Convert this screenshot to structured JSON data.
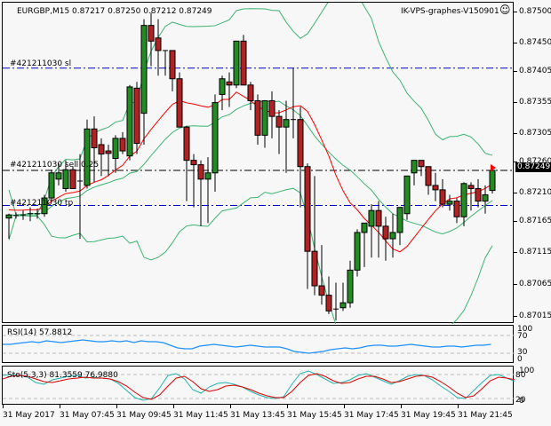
{
  "header": {
    "symbol_info": "EURGBP,M15  0.87217 0.87250 0.87212 0.87249",
    "account_label": "IK-VPS-graphes-V150901",
    "smiley_icon": "☺"
  },
  "price_axis": {
    "labels": [
      "0.87500",
      "0.87450",
      "0.87405",
      "0.87355",
      "0.87305",
      "0.87260",
      "0.87210",
      "0.87165",
      "0.87115",
      "0.87065",
      "0.87015"
    ],
    "current_price": "0.87249"
  },
  "order_lines": {
    "sl_label": "#421211030 sl",
    "entry_label": "#421211030 sell 0.25",
    "tp_label": "#421211030 tp",
    "sl_color": "#0000cc",
    "entry_color": "#000000",
    "tp_color": "#0000cc"
  },
  "rsi": {
    "label": "RSI(14) 57.8812",
    "levels": [
      "100",
      "70",
      "30",
      "0"
    ],
    "color": "#1e90ff"
  },
  "stochastic": {
    "label": "Sto(5,3,3) 81.3559 76.9880",
    "levels": [
      "100",
      "80",
      "20",
      "0"
    ],
    "main_color": "#20b2aa",
    "signal_color": "#dd0000"
  },
  "time_axis": {
    "labels": [
      "31 May 2017",
      "31 May 07:45",
      "31 May 09:45",
      "31 May 11:45",
      "31 May 13:45",
      "31 May 15:45",
      "31 May 17:45",
      "31 May 19:45",
      "31 May 21:45"
    ]
  },
  "colors": {
    "bull_candle": "#228b22",
    "bear_candle": "#b22222",
    "bollinger": "#3cb371",
    "ma": "#ff0000",
    "background": "#f7f7f7"
  },
  "chart_data": {
    "type": "candlestick",
    "title": "EURGBP,M15",
    "ohlc_last": {
      "open": 0.87217,
      "high": 0.8725,
      "low": 0.87212,
      "close": 0.87249
    },
    "ylim": [
      0.87005,
      0.8751
    ],
    "x_ticks": [
      "31 May 2017",
      "31 May 07:45",
      "31 May 09:45",
      "31 May 11:45",
      "31 May 13:45",
      "31 May 15:45",
      "31 May 17:45",
      "31 May 19:45",
      "31 May 21:45"
    ],
    "horizontal_lines": [
      {
        "label": "#421211030 sl",
        "price": 0.87412
      },
      {
        "label": "#421211030 sell 0.25",
        "price": 0.87249
      },
      {
        "label": "#421211030 tp",
        "price": 0.87193
      }
    ],
    "candles": [
      [
        0.87173,
        0.8718,
        0.8714,
        0.87178
      ],
      [
        0.87176,
        0.87182,
        0.87172,
        0.87177
      ],
      [
        0.87177,
        0.87185,
        0.8717,
        0.87178
      ],
      [
        0.87178,
        0.8719,
        0.87168,
        0.8718
      ],
      [
        0.8718,
        0.87188,
        0.87172,
        0.87178
      ],
      [
        0.8718,
        0.8721,
        0.87175,
        0.87205
      ],
      [
        0.87205,
        0.8725,
        0.872,
        0.87245
      ],
      [
        0.87235,
        0.8726,
        0.87225,
        0.87245
      ],
      [
        0.8722,
        0.87265,
        0.87215,
        0.8725
      ],
      [
        0.8725,
        0.87255,
        0.8723,
        0.8722
      ],
      [
        0.8723,
        0.87275,
        0.8714,
        0.87232
      ],
      [
        0.87225,
        0.8733,
        0.8722,
        0.87315
      ],
      [
        0.87315,
        0.87335,
        0.8723,
        0.87285
      ],
      [
        0.8729,
        0.873,
        0.8724,
        0.87275
      ],
      [
        0.8728,
        0.8729,
        0.8724,
        0.87276
      ],
      [
        0.87268,
        0.87305,
        0.87245,
        0.873
      ],
      [
        0.873,
        0.8731,
        0.87275,
        0.8728
      ],
      [
        0.87272,
        0.87385,
        0.87265,
        0.87382
      ],
      [
        0.8738,
        0.8739,
        0.87275,
        0.87292
      ],
      [
        0.8734,
        0.8749,
        0.8729,
        0.8748
      ],
      [
        0.8748,
        0.875,
        0.87415,
        0.87455
      ],
      [
        0.8746,
        0.8749,
        0.874,
        0.8744
      ],
      [
        0.8744,
        0.8744,
        0.874,
        0.87438
      ],
      [
        0.8744,
        0.87435,
        0.87375,
        0.87395
      ],
      [
        0.87395,
        0.87405,
        0.8734,
        0.87318
      ],
      [
        0.87318,
        0.8732,
        0.872,
        0.87265
      ],
      [
        0.87265,
        0.87275,
        0.8719,
        0.87258
      ],
      [
        0.87258,
        0.87265,
        0.8716,
        0.87235
      ],
      [
        0.87235,
        0.8727,
        0.87165,
        0.87245
      ],
      [
        0.87245,
        0.8737,
        0.87215,
        0.87357
      ],
      [
        0.8737,
        0.874,
        0.87345,
        0.87395
      ],
      [
        0.8739,
        0.87405,
        0.8735,
        0.87385
      ],
      [
        0.87385,
        0.87455,
        0.8738,
        0.87455
      ],
      [
        0.87455,
        0.87465,
        0.874,
        0.87385
      ],
      [
        0.87385,
        0.8739,
        0.87345,
        0.8736
      ],
      [
        0.8736,
        0.8737,
        0.8729,
        0.87305
      ],
      [
        0.87305,
        0.8736,
        0.87285,
        0.8736
      ],
      [
        0.8736,
        0.87375,
        0.873,
        0.87335
      ],
      [
        0.87335,
        0.87345,
        0.87275,
        0.87318
      ],
      [
        0.87318,
        0.8736,
        0.87245,
        0.8733
      ],
      [
        0.8733,
        0.87412,
        0.873,
        0.8733
      ],
      [
        0.8733,
        0.8735,
        0.8719,
        0.87255
      ],
      [
        0.87255,
        0.8726,
        0.8706,
        0.8712
      ],
      [
        0.8712,
        0.8724,
        0.8705,
        0.87065
      ],
      [
        0.87065,
        0.8713,
        0.87035,
        0.8705
      ],
      [
        0.8705,
        0.8708,
        0.8702,
        0.87025
      ],
      [
        0.87028,
        0.8707,
        0.8701,
        0.87028
      ],
      [
        0.8703,
        0.8707,
        0.87025,
        0.87038
      ],
      [
        0.87038,
        0.87105,
        0.8703,
        0.8709
      ],
      [
        0.8709,
        0.87155,
        0.8708,
        0.8715
      ],
      [
        0.8715,
        0.87165,
        0.87095,
        0.87165
      ],
      [
        0.8716,
        0.87195,
        0.8711,
        0.87185
      ],
      [
        0.87185,
        0.872,
        0.8711,
        0.8716
      ],
      [
        0.8716,
        0.87175,
        0.87105,
        0.8714
      ],
      [
        0.8714,
        0.8718,
        0.8711,
        0.8715
      ],
      [
        0.8715,
        0.8719,
        0.8713,
        0.8719
      ],
      [
        0.8718,
        0.8724,
        0.8717,
        0.8724
      ],
      [
        0.87245,
        0.8726,
        0.87225,
        0.87265
      ],
      [
        0.87265,
        0.87262,
        0.8724,
        0.87255
      ],
      [
        0.87255,
        0.8725,
        0.8721,
        0.87225
      ],
      [
        0.87225,
        0.87245,
        0.872,
        0.87218
      ],
      [
        0.87218,
        0.87235,
        0.8719,
        0.87195
      ],
      [
        0.87195,
        0.8721,
        0.87185,
        0.872
      ],
      [
        0.872,
        0.87205,
        0.87165,
        0.87175
      ],
      [
        0.87175,
        0.8723,
        0.8716,
        0.87228
      ],
      [
        0.87225,
        0.8723,
        0.87185,
        0.8722
      ],
      [
        0.8722,
        0.87235,
        0.8719,
        0.872
      ],
      [
        0.872,
        0.87225,
        0.8718,
        0.8721
      ],
      [
        0.87217,
        0.8725,
        0.87212,
        0.87249
      ]
    ],
    "rsi_series": {
      "name": "RSI(14)",
      "last": 57.8812,
      "levels": [
        70,
        30
      ],
      "ylim": [
        0,
        100
      ]
    },
    "stochastic_series": [
      {
        "name": "Sto %K",
        "last": 81.3559
      },
      {
        "name": "Sto %D",
        "last": 76.988
      }
    ],
    "stochastic_levels": [
      80,
      20
    ]
  }
}
